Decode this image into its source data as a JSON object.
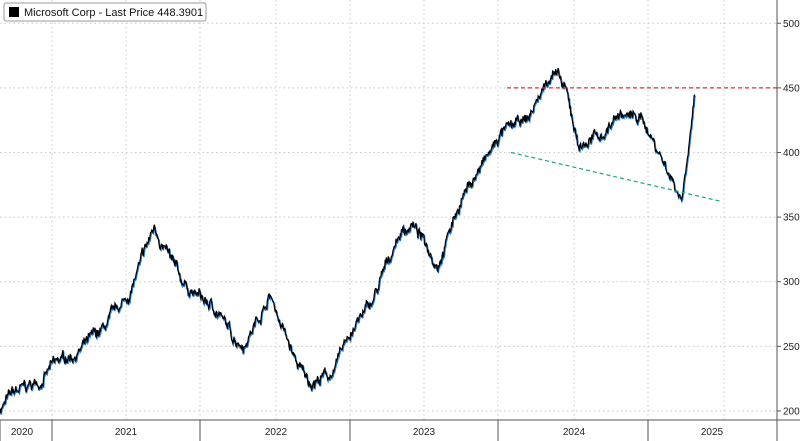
{
  "legend": {
    "label": "Microsoft Corp - Last Price",
    "value": "448.3901",
    "swatch_color": "#000000"
  },
  "chart_data": {
    "type": "line",
    "title": "",
    "xlabel": "",
    "ylabel": "",
    "ylim": [
      193,
      518
    ],
    "y_ticks": [
      200,
      250,
      300,
      350,
      400,
      450,
      500
    ],
    "x_labels": [
      "2020",
      "2021",
      "2022",
      "2023",
      "2024",
      "2025"
    ],
    "grid": true,
    "legend_position": "top-left",
    "colors": {
      "line_dark": "#000000",
      "line_accent": "#2f7fd0",
      "resistance": "#e03030",
      "support": "#1aa58a"
    },
    "series": [
      {
        "name": "Microsoft Corp - Last Price",
        "x": [
          "2020-11",
          "2020-12",
          "2021-02",
          "2021-03",
          "2021-05",
          "2021-07",
          "2021-09",
          "2021-11",
          "2022-01",
          "2022-02",
          "2022-04",
          "2022-05",
          "2022-06",
          "2022-08",
          "2022-10",
          "2022-11",
          "2023-01",
          "2023-02",
          "2023-04",
          "2023-06",
          "2023-07",
          "2023-09",
          "2023-11",
          "2024-01",
          "2024-02",
          "2024-04",
          "2024-06",
          "2024-07",
          "2024-08",
          "2024-10",
          "2024-11",
          "2025-01",
          "2025-03",
          "2025-04",
          "2025-05"
        ],
        "values": [
          202,
          213,
          222,
          234,
          246,
          262,
          289,
          342,
          301,
          292,
          276,
          258,
          253,
          290,
          237,
          222,
          230,
          258,
          285,
          337,
          345,
          315,
          368,
          398,
          415,
          425,
          465,
          445,
          405,
          415,
          430,
          425,
          385,
          365,
          448
        ]
      }
    ],
    "annotations": [
      {
        "type": "resistance",
        "y": 450
      },
      {
        "type": "trendline",
        "from": {
          "x": "2024-07",
          "y": 400
        },
        "to": {
          "x": "2025-05",
          "y": 362
        }
      }
    ]
  }
}
